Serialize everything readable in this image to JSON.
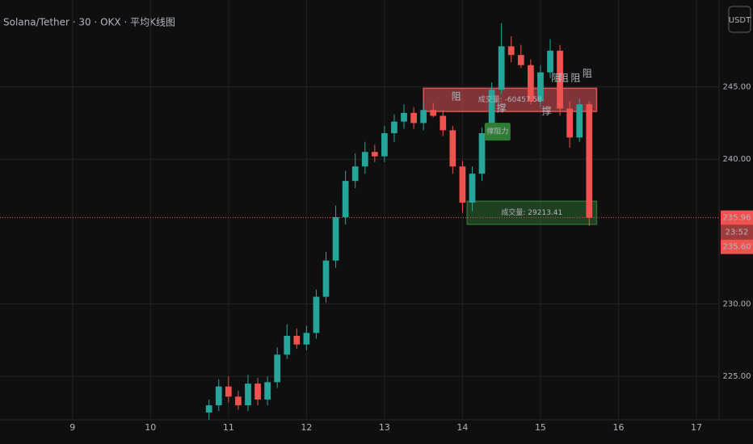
{
  "header": {
    "symbol": "Solana/Tether · 30 · OKX · 平均K线图",
    "currency": "USDT"
  },
  "chart_data": {
    "type": "candlestick",
    "x": [
      10.75,
      10.875,
      11.0,
      11.125,
      11.25,
      11.375,
      11.5,
      11.625,
      11.75,
      11.875,
      12.0,
      12.125,
      12.25,
      12.375,
      12.5,
      12.625,
      12.75,
      12.875,
      13.0,
      13.125,
      13.25,
      13.375,
      13.5,
      13.625,
      13.75,
      13.875,
      14.0,
      14.125,
      14.25,
      14.375,
      14.5,
      14.625,
      14.75,
      14.875,
      15.0,
      15.125,
      15.25,
      15.375,
      15.5,
      15.625
    ],
    "open": [
      222.5,
      223.0,
      224.3,
      223.6,
      223.0,
      224.5,
      223.4,
      224.6,
      226.5,
      227.8,
      227.2,
      228.0,
      230.5,
      233.0,
      236.0,
      238.5,
      239.5,
      240.5,
      240.2,
      241.8,
      242.6,
      243.2,
      242.5,
      243.4,
      243.0,
      242.0,
      239.5,
      237.0,
      239.0,
      241.8,
      244.8,
      247.8,
      247.2,
      246.5,
      244.0,
      246.0,
      247.5,
      243.5,
      241.5,
      243.8
    ],
    "high": [
      223.4,
      224.8,
      225.0,
      224.0,
      225.1,
      224.9,
      225.0,
      227.0,
      228.6,
      228.3,
      228.5,
      231.0,
      233.6,
      236.8,
      239.2,
      240.4,
      241.2,
      241.0,
      242.3,
      243.1,
      243.8,
      243.6,
      244.0,
      243.9,
      243.4,
      242.3,
      239.9,
      239.5,
      242.2,
      245.3,
      249.4,
      248.5,
      247.9,
      246.9,
      246.5,
      248.3,
      247.9,
      244.0,
      244.2,
      244.0
    ],
    "low": [
      222.0,
      222.6,
      223.2,
      222.7,
      222.6,
      223.0,
      223.0,
      224.2,
      226.2,
      226.9,
      226.8,
      227.6,
      230.1,
      232.5,
      235.5,
      238.0,
      239.0,
      239.8,
      239.8,
      241.2,
      242.1,
      242.1,
      242.0,
      242.9,
      241.6,
      239.0,
      236.3,
      236.4,
      238.5,
      241.3,
      244.5,
      246.7,
      246.3,
      243.8,
      243.6,
      245.6,
      243.0,
      240.8,
      241.2,
      235.4
    ],
    "close": [
      223.0,
      224.3,
      223.6,
      223.0,
      224.5,
      223.4,
      224.6,
      226.5,
      227.8,
      227.2,
      228.0,
      230.5,
      233.0,
      236.0,
      238.5,
      239.5,
      240.5,
      240.2,
      241.8,
      242.6,
      243.2,
      242.5,
      243.4,
      243.0,
      242.0,
      239.5,
      237.0,
      239.0,
      241.8,
      244.8,
      247.8,
      247.2,
      246.5,
      244.0,
      246.0,
      247.5,
      243.5,
      241.5,
      243.8,
      235.96
    ],
    "up_color": "#26a69a",
    "down_color": "#ef5350",
    "xlim": [
      8.07,
      17.29
    ],
    "xticks": [
      9,
      10,
      11,
      12,
      13,
      14,
      15,
      16,
      17
    ],
    "ylim": [
      222,
      251
    ],
    "yticks": [
      {
        "value": 225,
        "label": "225.00"
      },
      {
        "value": 230,
        "label": "230.00"
      },
      {
        "value": 240,
        "label": "240.00"
      },
      {
        "value": 245,
        "label": "245.00"
      }
    ],
    "grid": true,
    "last_price": {
      "value": 235.96,
      "label": "235.96"
    },
    "badges": [
      "23:52",
      "235.60"
    ],
    "zones": [
      {
        "label": "成交量: -60457.58",
        "x_start": 13.5,
        "x_end": 15.72,
        "top": 244.9,
        "bottom": 243.3,
        "color": "#e0525a"
      },
      {
        "label": "成交量: 29213.41",
        "x_start": 14.06,
        "x_end": 15.72,
        "top": 237.1,
        "bottom": 235.5,
        "color": "#2e6b33"
      }
    ],
    "annotations": [
      {
        "text": "阻",
        "x": 13.92,
        "y": 244.3,
        "color": "#ef5350"
      },
      {
        "text": "阻",
        "x": 15.2,
        "y": 245.6,
        "color": "#ef5350"
      },
      {
        "text": "阻",
        "x": 15.3,
        "y": 245.6,
        "color": "#ef5350"
      },
      {
        "text": "阻",
        "x": 15.45,
        "y": 245.6,
        "color": "#ef5350"
      },
      {
        "text": "阻",
        "x": 15.6,
        "y": 245.9,
        "color": "#ef5350"
      },
      {
        "text": "撑",
        "x": 14.5,
        "y": 243.5,
        "color": "#8bc34a"
      },
      {
        "text": "撑",
        "x": 15.08,
        "y": 243.3,
        "color": "#8bc34a"
      },
      {
        "text": "撑阻力",
        "x": 14.45,
        "y": 241.9,
        "color": "#2e7d32"
      }
    ]
  }
}
